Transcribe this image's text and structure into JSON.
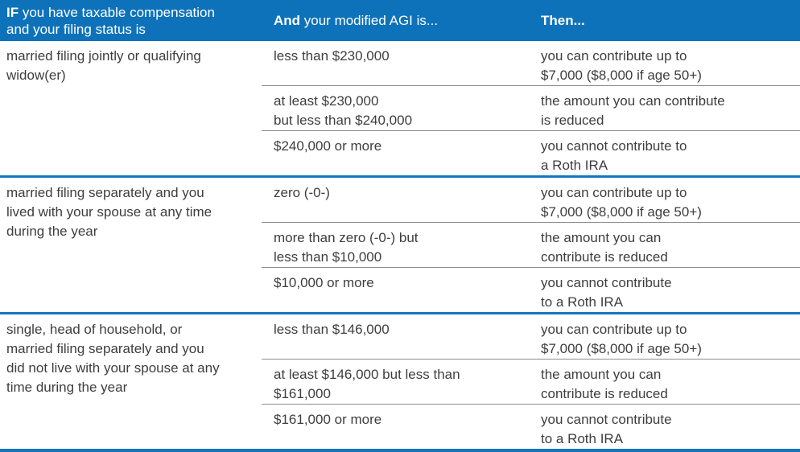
{
  "theme": {
    "accent_blue": "#0d72b9",
    "separator_blue": "#1476c0",
    "divider_gray": "#8c8c8c",
    "text": "#3e3e3e",
    "header_text": "#ffffff",
    "background": "#ffffff"
  },
  "header": {
    "col1": {
      "bold": "IF",
      "rest": " you have taxable compensation and your filing status is"
    },
    "col2": {
      "bold": "And",
      "rest": " your modified AGI is..."
    },
    "col3": {
      "bold": "Then...",
      "rest": ""
    }
  },
  "groups": [
    {
      "status": [
        "married filing jointly or qualifying",
        "widow(er)"
      ],
      "rows": [
        {
          "agi": [
            "less than $230,000"
          ],
          "then": [
            "you can contribute up to",
            "$7,000 ($8,000 if age 50+)"
          ]
        },
        {
          "agi": [
            "at least $230,000",
            "but less than $240,000"
          ],
          "then": [
            "the amount you can contribute",
            "is reduced"
          ]
        },
        {
          "agi": [
            "$240,000 or more"
          ],
          "then": [
            "you cannot contribute to",
            "a Roth IRA"
          ]
        }
      ]
    },
    {
      "status": [
        "married filing separately and you",
        "lived with your spouse at any time",
        "during the year"
      ],
      "rows": [
        {
          "agi": [
            "zero (-0-)"
          ],
          "then": [
            "you can contribute up to",
            "$7,000 ($8,000 if age 50+)"
          ]
        },
        {
          "agi": [
            "more than zero (-0-) but",
            "less than $10,000"
          ],
          "then": [
            "the amount you can",
            "contribute is reduced"
          ]
        },
        {
          "agi": [
            "$10,000 or more"
          ],
          "then": [
            "you cannot contribute",
            "to a Roth IRA"
          ]
        }
      ]
    },
    {
      "status": [
        "single, head of household, or",
        "married filing separately and you",
        "did not live with your spouse at any",
        "time during the year"
      ],
      "rows": [
        {
          "agi": [
            "less than $146,000"
          ],
          "then": [
            "you can contribute up to",
            "$7,000 ($8,000 if age 50+)"
          ]
        },
        {
          "agi": [
            "at least $146,000 but less than",
            "$161,000"
          ],
          "then": [
            "the amount you can",
            "contribute is reduced"
          ]
        },
        {
          "agi": [
            "$161,000 or more"
          ],
          "then": [
            "you cannot contribute",
            "to a Roth IRA"
          ]
        }
      ]
    }
  ]
}
